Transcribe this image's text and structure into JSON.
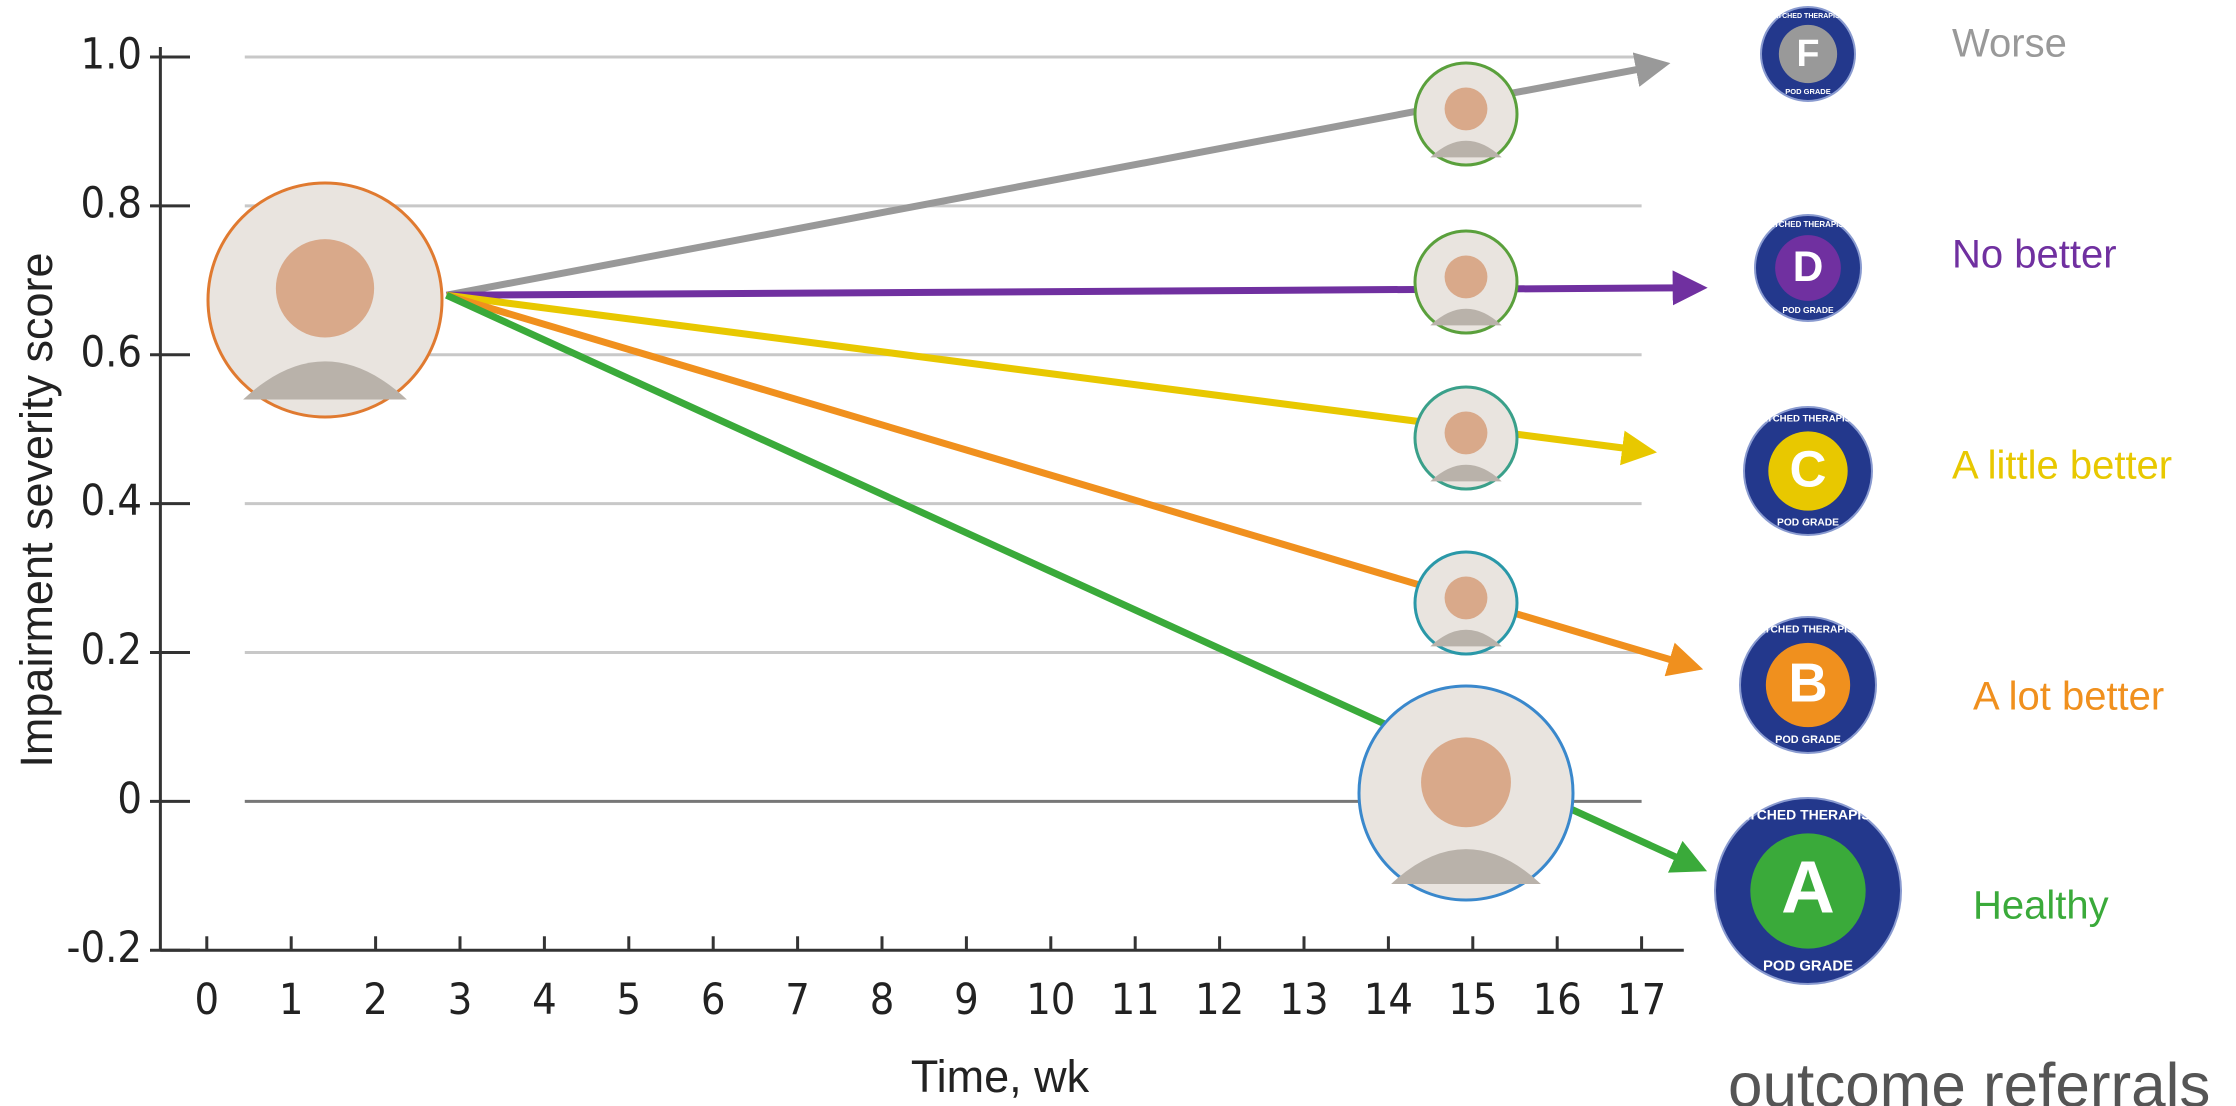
{
  "chart_data": {
    "type": "line",
    "x_label": "Time, wk",
    "y_label": "Impairment severity score",
    "xlim": [
      -0.55,
      17.5
    ],
    "ylim": [
      -0.2,
      1.0
    ],
    "xticks": [
      0,
      1,
      2,
      3,
      4,
      5,
      6,
      7,
      8,
      9,
      10,
      11,
      12,
      13,
      14,
      15,
      16,
      17
    ],
    "yticks": [
      -0.2,
      0,
      0.2,
      0.4,
      0.6,
      0.8,
      {
        "value": 1.0,
        "label": "1.0"
      }
    ],
    "grid": true,
    "badge_top": "MATCHED THERAPISTS",
    "badge_bottom": "POD GRADE",
    "logo": "outcome referrals",
    "series": [
      {
        "name": "Worse",
        "color": "#999999",
        "grade": "F",
        "x": [
          2.84,
          17.26
        ],
        "values": [
          0.68,
          0.99
        ]
      },
      {
        "name": "No better",
        "color": "#7030a0",
        "grade": "D",
        "x": [
          2.84,
          17.7
        ],
        "values": [
          0.68,
          0.69
        ]
      },
      {
        "name": "A little better",
        "color": "#e8c800",
        "grade": "C",
        "x": [
          2.84,
          17.1
        ],
        "values": [
          0.68,
          0.47
        ]
      },
      {
        "name": "A lot better",
        "color": "#f0901e",
        "grade": "B",
        "x": [
          2.84,
          17.65
        ],
        "values": [
          0.68,
          0.18
        ]
      },
      {
        "name": "Healthy",
        "color": "#3aaa3a",
        "grade": "A",
        "x": [
          2.84,
          17.7
        ],
        "values": [
          0.68,
          -0.09
        ]
      }
    ]
  }
}
